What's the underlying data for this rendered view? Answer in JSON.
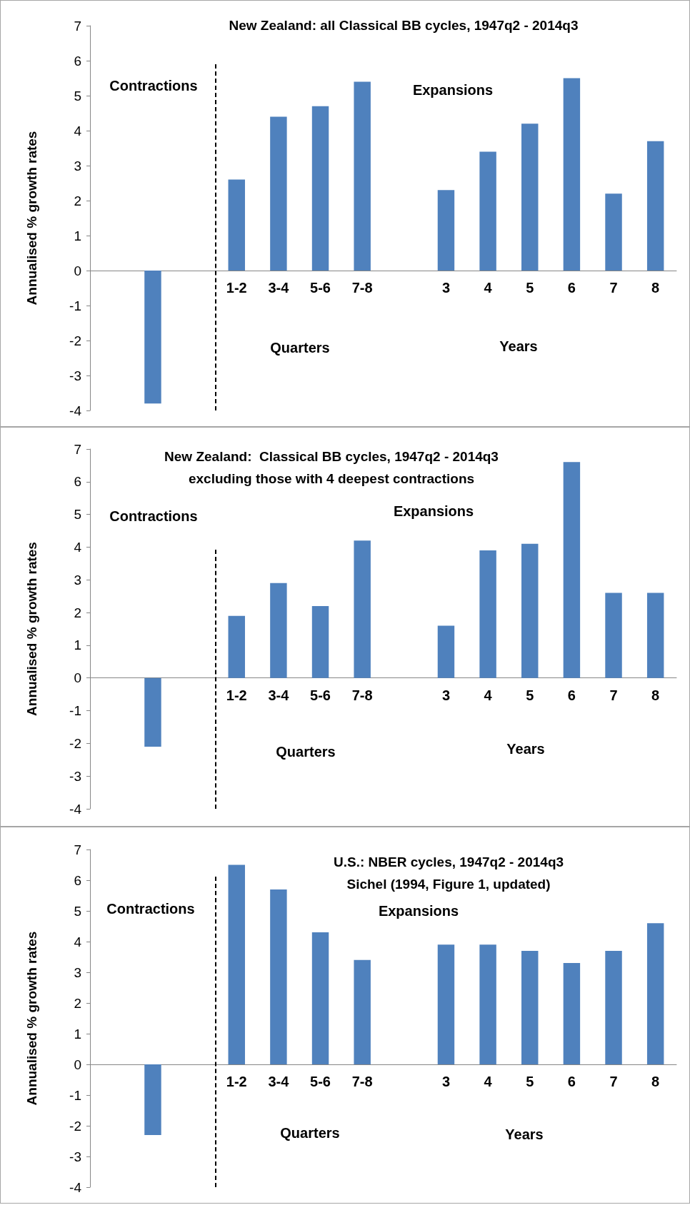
{
  "chart_data": [
    {
      "type": "bar",
      "title": "New Zealand: all Classical BB cycles, 1947q2 - 2014q3",
      "ylabel": "Annualised % growth rates",
      "categories": [
        null,
        null,
        null,
        "1-2",
        "3-4",
        "5-6",
        "7-8",
        null,
        "3",
        "4",
        "5",
        "6",
        "7",
        "8"
      ],
      "values": [
        null,
        -3.8,
        null,
        2.6,
        4.4,
        4.7,
        5.4,
        null,
        2.3,
        3.4,
        4.2,
        5.5,
        2.2,
        3.7
      ],
      "color": "#4f81bd",
      "ylim": [
        -4,
        7
      ],
      "yticks": [
        -4,
        -3,
        -2,
        -1,
        0,
        1,
        2,
        3,
        4,
        5,
        6,
        7
      ],
      "grid": false,
      "annotations": [
        "Contractions",
        "Expansions",
        "Quarters",
        "Years"
      ]
    },
    {
      "type": "bar",
      "title": "New Zealand:  Classical BB cycles, 1947q2 - 2014q3",
      "subtitle": "excluding those with 4 deepest contractions",
      "ylabel": "Annualised % growth rates",
      "categories": [
        null,
        null,
        null,
        "1-2",
        "3-4",
        "5-6",
        "7-8",
        null,
        "3",
        "4",
        "5",
        "6",
        "7",
        "8"
      ],
      "values": [
        null,
        -2.1,
        null,
        1.9,
        2.9,
        2.2,
        4.2,
        null,
        1.6,
        3.9,
        4.1,
        6.6,
        2.6,
        2.6
      ],
      "color": "#4f81bd",
      "ylim": [
        -4,
        7
      ],
      "yticks": [
        -4,
        -3,
        -2,
        -1,
        0,
        1,
        2,
        3,
        4,
        5,
        6,
        7
      ],
      "grid": false,
      "annotations": [
        "Contractions",
        "Expansions",
        "Quarters",
        "Years"
      ]
    },
    {
      "type": "bar",
      "title": "U.S.: NBER cycles, 1947q2 - 2014q3",
      "subtitle": "Sichel (1994, Figure 1, updated)",
      "ylabel": "Annualised % growth rates",
      "categories": [
        null,
        null,
        null,
        "1-2",
        "3-4",
        "5-6",
        "7-8",
        null,
        "3",
        "4",
        "5",
        "6",
        "7",
        "8"
      ],
      "values": [
        null,
        -2.3,
        null,
        6.5,
        5.7,
        4.3,
        3.4,
        null,
        3.9,
        3.9,
        3.7,
        3.3,
        3.7,
        4.6
      ],
      "color": "#4f81bd",
      "ylim": [
        -4,
        7
      ],
      "yticks": [
        -4,
        -3,
        -2,
        -1,
        0,
        1,
        2,
        3,
        4,
        5,
        6,
        7
      ],
      "grid": false,
      "annotations": [
        "Contractions",
        "Expansions",
        "Quarters",
        "Years"
      ]
    }
  ]
}
